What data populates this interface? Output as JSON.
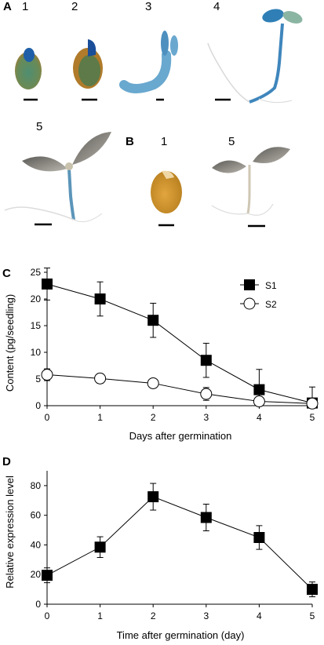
{
  "panel_a": {
    "letter": "A",
    "labels": [
      "1",
      "2",
      "3",
      "4",
      "5"
    ]
  },
  "panel_b": {
    "letter": "B",
    "labels": [
      "1",
      "5"
    ]
  },
  "chart_data": [
    {
      "panel": "C",
      "type": "line",
      "title": "",
      "xlabel": "Days after germination",
      "ylabel": "Content (pg/seedling)",
      "x": [
        0,
        1,
        2,
        3,
        4,
        5
      ],
      "xlim": [
        0,
        5
      ],
      "ylim": [
        0,
        25
      ],
      "xticks": [
        0,
        1,
        2,
        3,
        4,
        5
      ],
      "yticks": [
        0,
        5,
        10,
        15,
        20,
        25
      ],
      "grid": false,
      "legend": "top-right",
      "series": [
        {
          "name": "S1",
          "marker": "filled-square",
          "values": [
            22.8,
            20,
            16,
            8.5,
            3,
            0.5
          ],
          "errors": [
            3,
            3.2,
            3.2,
            3.2,
            3.8,
            3
          ]
        },
        {
          "name": "S2",
          "marker": "open-circle",
          "values": [
            5.8,
            5.1,
            4.2,
            2.2,
            0.8,
            0.4
          ],
          "errors": [
            1.1,
            0.9,
            0.6,
            1.2,
            0.6,
            0.4
          ]
        }
      ]
    },
    {
      "panel": "D",
      "type": "line",
      "title": "",
      "xlabel": "Time after germination (day)",
      "ylabel": "Relative expression level",
      "x": [
        0,
        1,
        2,
        3,
        4,
        5
      ],
      "xlim": [
        0,
        5
      ],
      "ylim": [
        0,
        90
      ],
      "xticks": [
        0,
        1,
        2,
        3,
        4,
        5
      ],
      "yticks": [
        0,
        20,
        40,
        60,
        80
      ],
      "grid": false,
      "series": [
        {
          "marker": "filled-square",
          "values": [
            19.5,
            38.5,
            72.5,
            58.5,
            45,
            10
          ],
          "errors": [
            5,
            7,
            9,
            9,
            8,
            5
          ]
        }
      ]
    }
  ]
}
